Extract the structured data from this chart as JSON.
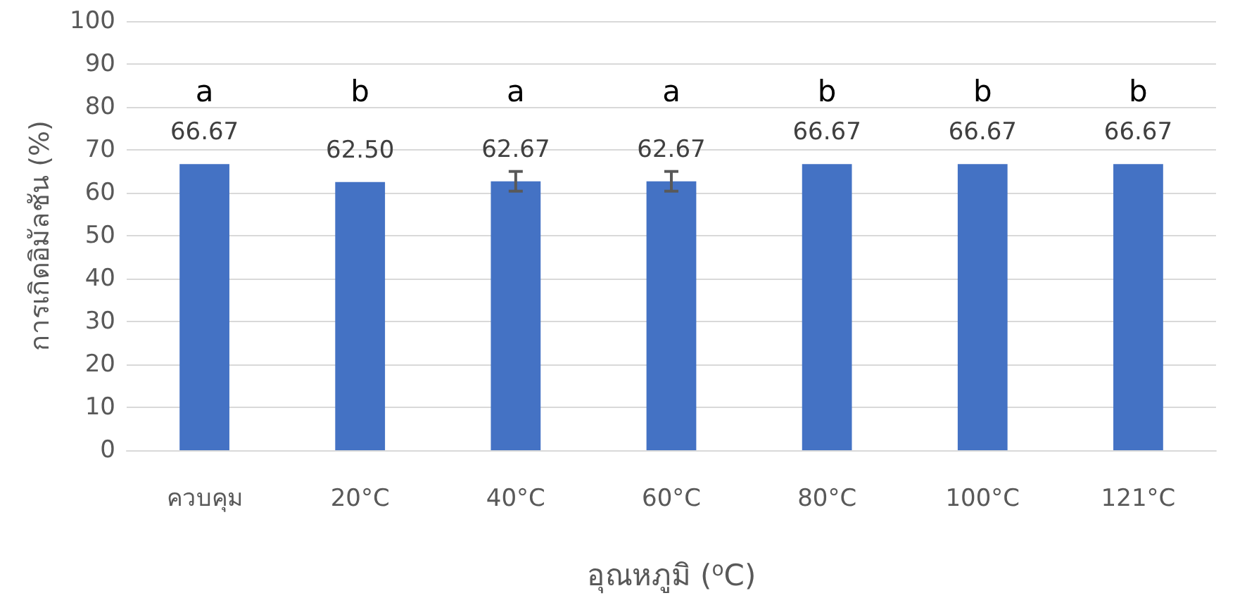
{
  "chart_data": {
    "type": "bar",
    "xlabel": "อุณหภูมิ ($^{o}$C)",
    "ylabel": "การเกิดอิมัลชัน (%)",
    "categories": [
      "ควบคุม",
      "20°C",
      "40°C",
      "60°C",
      "80°C",
      "100°C",
      "121°C"
    ],
    "values": [
      66.67,
      62.5,
      62.67,
      62.67,
      66.67,
      66.67,
      66.67
    ],
    "value_labels": [
      "66.67",
      "62.50",
      "62.67",
      "62.67",
      "66.67",
      "66.67",
      "66.67"
    ],
    "errors": [
      null,
      null,
      2.3,
      2.3,
      null,
      null,
      null
    ],
    "color": "#4472c4",
    "ylim": [
      0,
      100
    ],
    "yticks": [
      0,
      10,
      20,
      30,
      40,
      50,
      60,
      70,
      80,
      90,
      100
    ],
    "grid": "y",
    "annotations": [
      "a",
      "b",
      "a",
      "a",
      "b",
      "b",
      "b"
    ]
  }
}
